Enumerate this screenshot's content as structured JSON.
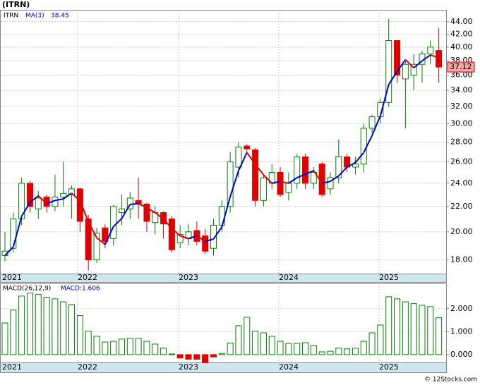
{
  "chart_data": [
    {
      "type": "candlestick",
      "title": "(ITRN)",
      "name": "ITRN",
      "x_labels": [
        "2021",
        "2022",
        "2023",
        "2024",
        "2025"
      ],
      "open": [
        18.3,
        18.8,
        21.0,
        24.0,
        21.8,
        22.8,
        22.0,
        22.8,
        23.0,
        23.5,
        21.0,
        18.0,
        20.3,
        19.5,
        21.5,
        21.8,
        22.5,
        22.2,
        20.7,
        21.5,
        21.0,
        19.2,
        19.5,
        20.1,
        19.7,
        18.8,
        20.5,
        22.0,
        25.5,
        27.6,
        27.2,
        22.5,
        24.0,
        25.0,
        23.2,
        24.0,
        26.5,
        24.0,
        25.8,
        23.5,
        24.5,
        26.5,
        25.5,
        25.8,
        29.5,
        30.8,
        32.5,
        41.0,
        35.5,
        36.0,
        37.5,
        39.0,
        39.5
      ],
      "high": [
        20.0,
        21.5,
        24.5,
        24.2,
        23.3,
        23.0,
        24.8,
        26.0,
        23.8,
        23.6,
        21.3,
        20.3,
        20.6,
        22.1,
        23.0,
        23.2,
        24.5,
        22.3,
        22.0,
        21.6,
        21.2,
        20.5,
        20.6,
        20.8,
        20.2,
        21.0,
        22.5,
        27.0,
        28.0,
        27.8,
        27.4,
        24.8,
        25.8,
        25.5,
        25.0,
        26.8,
        26.8,
        25.5,
        26.0,
        25.0,
        28.3,
        26.8,
        26.5,
        30.0,
        31.0,
        33.0,
        44.5,
        41.0,
        38.0,
        39.0,
        39.5,
        41.0,
        43.0
      ],
      "low": [
        17.9,
        18.5,
        20.5,
        21.5,
        21.0,
        21.5,
        21.6,
        22.0,
        21.0,
        20.0,
        17.3,
        17.8,
        18.8,
        19.0,
        20.5,
        21.0,
        21.0,
        20.0,
        19.8,
        19.5,
        18.5,
        18.8,
        19.0,
        19.0,
        18.4,
        18.3,
        20.0,
        21.5,
        24.5,
        26.8,
        22.0,
        22.0,
        23.5,
        22.8,
        22.5,
        23.5,
        23.5,
        23.5,
        22.8,
        23.0,
        24.0,
        25.0,
        24.8,
        25.0,
        29.0,
        30.0,
        32.0,
        35.0,
        29.5,
        34.0,
        35.0,
        37.5,
        35.0
      ],
      "close": [
        18.6,
        21.0,
        24.0,
        22.0,
        22.7,
        22.0,
        22.8,
        23.1,
        23.5,
        20.8,
        18.0,
        19.9,
        19.3,
        22.0,
        21.8,
        22.7,
        22.2,
        20.8,
        21.5,
        20.6,
        18.7,
        19.8,
        20.0,
        19.3,
        18.6,
        20.5,
        22.0,
        26.0,
        27.5,
        27.3,
        22.5,
        24.5,
        25.0,
        23.0,
        24.0,
        26.5,
        24.0,
        25.0,
        23.0,
        24.5,
        26.5,
        25.5,
        25.8,
        29.5,
        30.8,
        32.5,
        41.0,
        36.0,
        37.5,
        37.5,
        39.0,
        40.0,
        37.12
      ],
      "up_color": "#008000",
      "down_color": "#e00000",
      "ma": {
        "name": "MA(3)",
        "up_color": "#0000cc",
        "down_color": "#e00000",
        "values": [
          18.3,
          18.9,
          21.2,
          22.33,
          22.9,
          22.23,
          22.5,
          22.63,
          23.13,
          22.47,
          20.77,
          19.57,
          19.07,
          20.4,
          21.03,
          22.17,
          22.23,
          21.9,
          21.5,
          20.97,
          20.27,
          19.7,
          19.5,
          19.7,
          19.3,
          19.47,
          20.37,
          22.83,
          25.17,
          26.93,
          25.77,
          24.77,
          24.0,
          24.17,
          24.0,
          24.5,
          24.83,
          25.17,
          24.0,
          24.17,
          24.67,
          25.5,
          25.93,
          26.93,
          28.7,
          30.93,
          34.77,
          36.5,
          38.17,
          37.0,
          38.0,
          38.83,
          38.45
        ]
      },
      "ylim": [
        17.1,
        46
      ],
      "log_scale": true,
      "grid": true,
      "yticks": [
        {
          "value": 18,
          "label": "18.00"
        },
        {
          "value": 20,
          "label": "20.00"
        },
        {
          "value": 22,
          "label": "22.00"
        },
        {
          "value": 24,
          "label": "24.00"
        },
        {
          "value": 26,
          "label": "26.00"
        },
        {
          "value": 28,
          "label": "28.00"
        },
        {
          "value": 30,
          "label": "30.00"
        },
        {
          "value": 32,
          "label": "32.00"
        },
        {
          "value": 34,
          "label": "34.00"
        },
        {
          "value": 36,
          "label": "36.00"
        },
        {
          "value": 38,
          "label": "38.00"
        },
        {
          "value": 40,
          "label": "40.00"
        },
        {
          "value": 42,
          "label": "42.00"
        },
        {
          "value": 44,
          "label": "44.00"
        }
      ]
    },
    {
      "type": "bar",
      "title": "MACD(26,12,9)",
      "value_name": "MACD:",
      "x_labels": [
        "2021",
        "2022",
        "2023",
        "2024",
        "2025"
      ],
      "values": [
        1.38,
        1.94,
        2.55,
        2.68,
        2.62,
        2.5,
        2.43,
        2.3,
        2.18,
        1.7,
        1.02,
        0.8,
        0.55,
        0.58,
        0.68,
        0.71,
        0.71,
        0.58,
        0.46,
        0.28,
        0.03,
        -0.15,
        -0.2,
        -0.2,
        -0.35,
        -0.1,
        0.05,
        0.5,
        1.26,
        1.63,
        1.02,
        0.95,
        0.8,
        0.58,
        0.49,
        0.49,
        0.52,
        0.4,
        0.12,
        0.15,
        0.28,
        0.25,
        0.28,
        0.58,
        0.95,
        1.29,
        2.52,
        2.43,
        2.3,
        2.22,
        2.15,
        2.09,
        1.606
      ],
      "pos_color": "#008000",
      "neg_color": "#e00000",
      "ylim": [
        -0.34,
        3.1
      ],
      "grid": true,
      "yticks": [
        {
          "value": 0,
          "label": "0.000"
        },
        {
          "value": 1,
          "label": "1.000"
        },
        {
          "value": 2,
          "label": "2.000"
        }
      ]
    }
  ],
  "watermark": "© 12Stocks.com"
}
